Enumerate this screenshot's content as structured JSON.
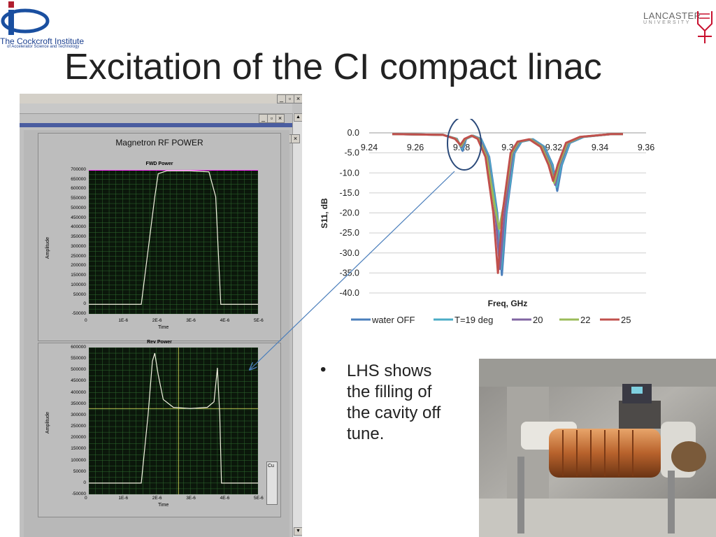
{
  "header": {
    "ci_logo_name": "The Cockcroft Institute",
    "ci_logo_sub": "of Accelerator Science and Technology",
    "lancaster_name": "LANCASTER",
    "lancaster_sub": "UNIVERSITY",
    "title": "Excitation of the CI compact linac"
  },
  "labview": {
    "panel_title": "Magnetron RF POWER",
    "fwd": {
      "title": "FWD Power",
      "y_label": "Amplitude",
      "x_label": "Time",
      "y_ticks": [
        "700000",
        "650000",
        "600000",
        "550000",
        "500000",
        "450000",
        "400000",
        "350000",
        "300000",
        "250000",
        "200000",
        "150000",
        "100000",
        "50000",
        "0",
        "-50000"
      ],
      "x_ticks": [
        "0",
        "1E-6",
        "2E-6",
        "3E-6",
        "4E-6",
        "5E-6"
      ]
    },
    "rev": {
      "title": "Rev Power",
      "y_label": "Amplitude",
      "x_label": "Time",
      "y_ticks": [
        "600000",
        "550000",
        "500000",
        "450000",
        "400000",
        "350000",
        "300000",
        "250000",
        "200000",
        "150000",
        "100000",
        "50000",
        "0",
        "-50000"
      ],
      "x_ticks": [
        "0",
        "1E-6",
        "2E-6",
        "3E-6",
        "4E-6",
        "5E-6"
      ]
    },
    "side_label": "Cu"
  },
  "chart_data": {
    "type": "line",
    "xlabel": "Freq, GHz",
    "ylabel": "S11, dB",
    "x_ticks": [
      "9.24",
      "9.26",
      "9.28",
      "9.3",
      "9.32",
      "9.34",
      "9.36"
    ],
    "y_ticks": [
      "0.0",
      "-5.0",
      "-10.0",
      "-15.0",
      "-20.0",
      "-25.0",
      "-30.0",
      "-35.0",
      "-40.0"
    ],
    "xlim": [
      9.24,
      9.36
    ],
    "ylim": [
      -40,
      0
    ],
    "legend_position": "bottom",
    "series": [
      {
        "name": "water OFF",
        "color": "#4a7ebb",
        "points": [
          [
            9.25,
            -0.3
          ],
          [
            9.272,
            -0.5
          ],
          [
            9.278,
            -1.5
          ],
          [
            9.2805,
            -4.5
          ],
          [
            9.282,
            -1.5
          ],
          [
            9.285,
            -0.7
          ],
          [
            9.2885,
            -1.5
          ],
          [
            9.292,
            -6
          ],
          [
            9.2955,
            -20
          ],
          [
            9.2975,
            -35.5
          ],
          [
            9.2995,
            -20
          ],
          [
            9.303,
            -5
          ],
          [
            9.306,
            -2.2
          ],
          [
            9.311,
            -1.6
          ],
          [
            9.316,
            -3.5
          ],
          [
            9.3195,
            -8
          ],
          [
            9.3215,
            -14.5
          ],
          [
            9.3235,
            -8
          ],
          [
            9.327,
            -2.5
          ],
          [
            9.333,
            -1.0
          ],
          [
            9.345,
            -0.3
          ],
          [
            9.35,
            -0.3
          ]
        ]
      },
      {
        "name": "T=19 deg",
        "color": "#4bacc6",
        "points": [
          [
            9.25,
            -0.3
          ],
          [
            9.272,
            -0.5
          ],
          [
            9.278,
            -1.5
          ],
          [
            9.2802,
            -4.0
          ],
          [
            9.282,
            -1.5
          ],
          [
            9.285,
            -0.7
          ],
          [
            9.2883,
            -1.5
          ],
          [
            9.2918,
            -6
          ],
          [
            9.2952,
            -20
          ],
          [
            9.2972,
            -34
          ],
          [
            9.2992,
            -20
          ],
          [
            9.3028,
            -5
          ],
          [
            9.3058,
            -2.2
          ],
          [
            9.3108,
            -1.6
          ],
          [
            9.3158,
            -3.5
          ],
          [
            9.3192,
            -8
          ],
          [
            9.3212,
            -13.5
          ],
          [
            9.3232,
            -8
          ],
          [
            9.3268,
            -2.5
          ],
          [
            9.3328,
            -1.0
          ],
          [
            9.345,
            -0.3
          ],
          [
            9.35,
            -0.3
          ]
        ]
      },
      {
        "name": "20",
        "color": "#8064a2",
        "points": [
          [
            9.25,
            -0.3
          ],
          [
            9.272,
            -0.5
          ],
          [
            9.2778,
            -1.5
          ],
          [
            9.28,
            -3.6
          ],
          [
            9.2818,
            -1.5
          ],
          [
            9.2848,
            -0.7
          ],
          [
            9.2878,
            -1.5
          ],
          [
            9.2913,
            -6
          ],
          [
            9.2947,
            -20
          ],
          [
            9.2967,
            -34
          ],
          [
            9.2987,
            -20
          ],
          [
            9.3022,
            -5
          ],
          [
            9.3052,
            -2.2
          ],
          [
            9.3102,
            -1.6
          ],
          [
            9.3152,
            -3.5
          ],
          [
            9.3186,
            -8
          ],
          [
            9.3206,
            -13
          ],
          [
            9.3226,
            -8
          ],
          [
            9.3262,
            -2.5
          ],
          [
            9.3322,
            -1.0
          ],
          [
            9.345,
            -0.3
          ],
          [
            9.35,
            -0.3
          ]
        ]
      },
      {
        "name": "22",
        "color": "#9bbb59",
        "points": [
          [
            9.25,
            -0.3
          ],
          [
            9.272,
            -0.5
          ],
          [
            9.2776,
            -1.5
          ],
          [
            9.2798,
            -3.3
          ],
          [
            9.2816,
            -1.5
          ],
          [
            9.2846,
            -0.7
          ],
          [
            9.2874,
            -1.5
          ],
          [
            9.2909,
            -6
          ],
          [
            9.2943,
            -18
          ],
          [
            9.2963,
            -24
          ],
          [
            9.2983,
            -18
          ],
          [
            9.3018,
            -5
          ],
          [
            9.3048,
            -2.2
          ],
          [
            9.3098,
            -1.6
          ],
          [
            9.3148,
            -3.5
          ],
          [
            9.3182,
            -8
          ],
          [
            9.3202,
            -12.5
          ],
          [
            9.3222,
            -8
          ],
          [
            9.3258,
            -2.5
          ],
          [
            9.3318,
            -1.0
          ],
          [
            9.345,
            -0.3
          ],
          [
            9.35,
            -0.3
          ]
        ]
      },
      {
        "name": "25",
        "color": "#c0504d",
        "points": [
          [
            9.25,
            -0.3
          ],
          [
            9.272,
            -0.5
          ],
          [
            9.2772,
            -1.5
          ],
          [
            9.2795,
            -3.0
          ],
          [
            9.2813,
            -1.5
          ],
          [
            9.2843,
            -0.7
          ],
          [
            9.287,
            -1.5
          ],
          [
            9.2904,
            -6
          ],
          [
            9.2938,
            -20
          ],
          [
            9.2958,
            -35
          ],
          [
            9.2978,
            -20
          ],
          [
            9.3013,
            -5
          ],
          [
            9.3043,
            -2.2
          ],
          [
            9.3093,
            -1.6
          ],
          [
            9.3143,
            -3.5
          ],
          [
            9.3177,
            -8
          ],
          [
            9.3197,
            -12
          ],
          [
            9.3217,
            -8
          ],
          [
            9.3253,
            -2.5
          ],
          [
            9.3313,
            -1.0
          ],
          [
            9.345,
            -0.3
          ],
          [
            9.35,
            -0.3
          ]
        ]
      }
    ]
  },
  "bullet": {
    "marker": "•",
    "lines": [
      "LHS shows",
      "the filling of",
      "the cavity off",
      "tune."
    ]
  },
  "colors": {
    "plot_bg": "#0b170b",
    "plot_grid": "#2f6a2f",
    "fwd_trace": "#f2f2e0",
    "fwd_limit": "#ff33ff",
    "rev_trace": "#f2f2e0",
    "rev_marker": "#e8e860",
    "annotation": "#4a7ebb"
  }
}
